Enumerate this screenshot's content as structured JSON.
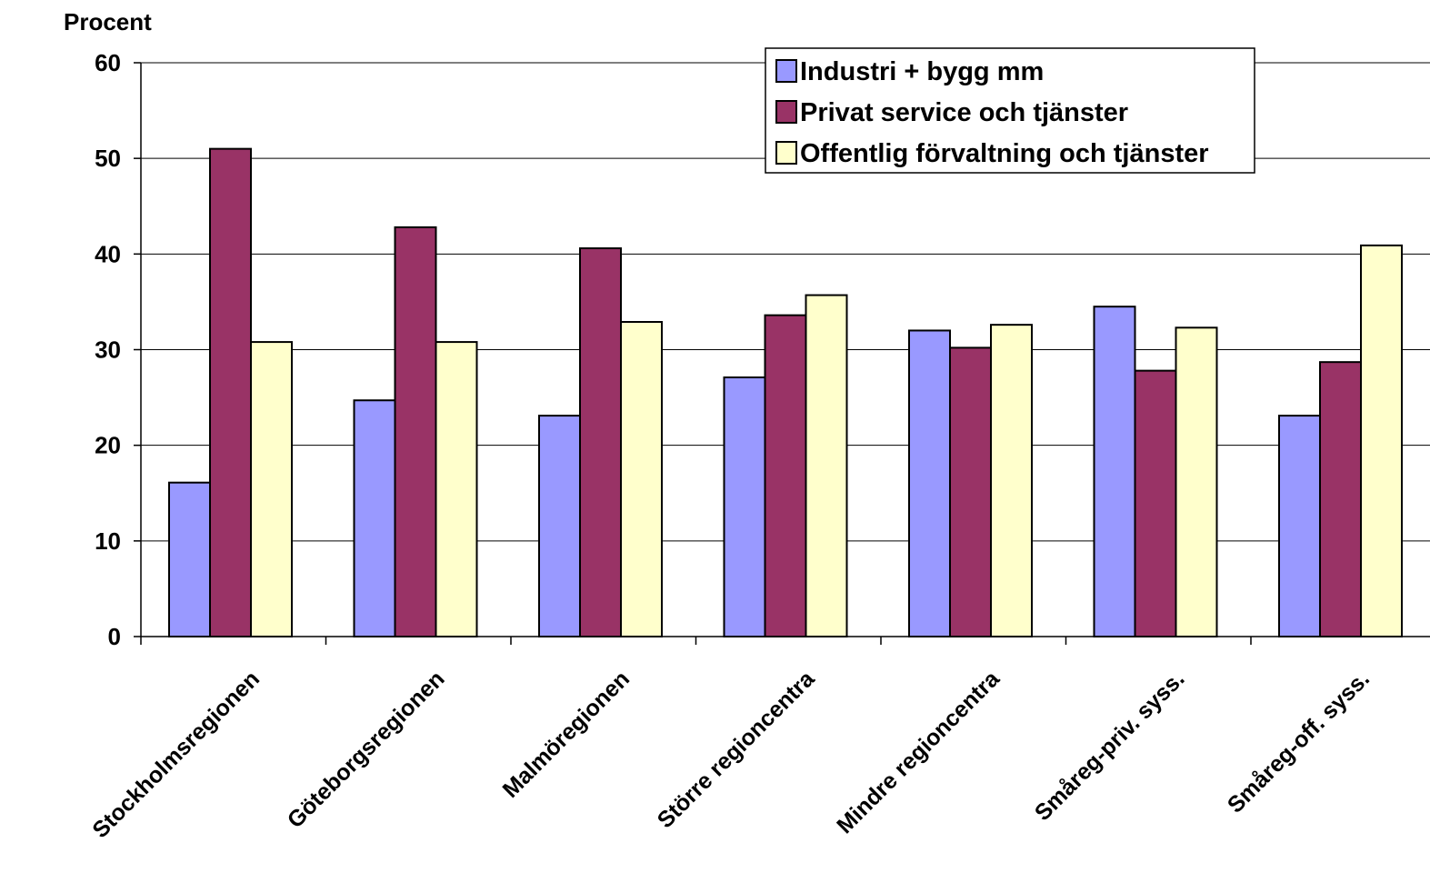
{
  "chart_data": {
    "type": "bar",
    "ylabel": "Procent",
    "ylim": [
      0,
      60
    ],
    "yticks": [
      "0",
      "10",
      "20",
      "30",
      "40",
      "50",
      "60"
    ],
    "grid": true,
    "legend_position": "top-right",
    "categories": [
      "Stockholmsregionen",
      "Göteborgsregionen",
      "Malmöregionen",
      "Större regioncentra",
      "Mindre regioncentra",
      "Småreg-priv. syss.",
      "Småreg-off. syss."
    ],
    "series": [
      {
        "name": "Industri + bygg mm",
        "color": "#9999ff",
        "values": [
          16.1,
          24.7,
          23.1,
          27.1,
          32.0,
          34.5,
          23.1
        ]
      },
      {
        "name": "Privat service och tjänster",
        "color": "#993366",
        "values": [
          51.0,
          42.8,
          40.6,
          33.6,
          30.2,
          27.8,
          28.7
        ]
      },
      {
        "name": "Offentlig förvaltning och tjänster",
        "color": "#ffffcc",
        "values": [
          30.8,
          30.8,
          32.9,
          35.7,
          32.6,
          32.3,
          40.9
        ]
      }
    ]
  }
}
